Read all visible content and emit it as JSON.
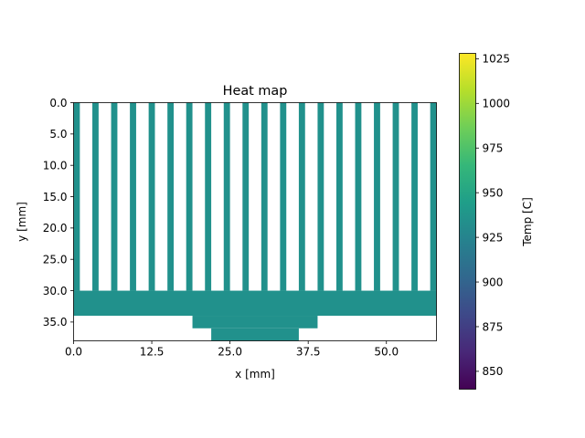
{
  "chart_data": {
    "type": "heatmap",
    "title": "Heat map",
    "xlabel": "x [mm]",
    "ylabel": "y [mm]",
    "xlim": [
      0,
      58
    ],
    "ylim": [
      38,
      0
    ],
    "x_ticks": [
      "0.0",
      "12.5",
      "25.0",
      "37.5",
      "50.0"
    ],
    "x_tick_values": [
      0,
      12.5,
      25,
      37.5,
      50
    ],
    "y_ticks": [
      "0.0",
      "5.0",
      "10.0",
      "15.0",
      "20.0",
      "25.0",
      "30.0",
      "35.0"
    ],
    "y_tick_values": [
      0,
      5,
      10,
      15,
      20,
      25,
      30,
      35
    ],
    "colorbar": {
      "label": "Temp [C]",
      "colormap": "viridis",
      "range": [
        840,
        1028
      ],
      "ticks": [
        "850",
        "875",
        "900",
        "925",
        "950",
        "975",
        "1000",
        "1025"
      ],
      "tick_values": [
        850,
        875,
        900,
        925,
        950,
        975,
        1000,
        1025
      ]
    },
    "fill_value": 935,
    "fill_color": "#21918c",
    "regions": [
      {
        "name": "fin",
        "x": [
          0,
          1
        ],
        "y": [
          0,
          30
        ]
      },
      {
        "name": "fin",
        "x": [
          3,
          4
        ],
        "y": [
          0,
          30
        ]
      },
      {
        "name": "fin",
        "x": [
          6,
          7
        ],
        "y": [
          0,
          30
        ]
      },
      {
        "name": "fin",
        "x": [
          9,
          10
        ],
        "y": [
          0,
          30
        ]
      },
      {
        "name": "fin",
        "x": [
          12,
          13
        ],
        "y": [
          0,
          30
        ]
      },
      {
        "name": "fin",
        "x": [
          15,
          16
        ],
        "y": [
          0,
          30
        ]
      },
      {
        "name": "fin",
        "x": [
          18,
          19
        ],
        "y": [
          0,
          30
        ]
      },
      {
        "name": "fin",
        "x": [
          21,
          22
        ],
        "y": [
          0,
          30
        ]
      },
      {
        "name": "fin",
        "x": [
          24,
          25
        ],
        "y": [
          0,
          30
        ]
      },
      {
        "name": "fin",
        "x": [
          27,
          28
        ],
        "y": [
          0,
          30
        ]
      },
      {
        "name": "fin",
        "x": [
          30,
          31
        ],
        "y": [
          0,
          30
        ]
      },
      {
        "name": "fin",
        "x": [
          33,
          34
        ],
        "y": [
          0,
          30
        ]
      },
      {
        "name": "fin",
        "x": [
          36,
          37
        ],
        "y": [
          0,
          30
        ]
      },
      {
        "name": "fin",
        "x": [
          39,
          40
        ],
        "y": [
          0,
          30
        ]
      },
      {
        "name": "fin",
        "x": [
          42,
          43
        ],
        "y": [
          0,
          30
        ]
      },
      {
        "name": "fin",
        "x": [
          45,
          46
        ],
        "y": [
          0,
          30
        ]
      },
      {
        "name": "fin",
        "x": [
          48,
          49
        ],
        "y": [
          0,
          30
        ]
      },
      {
        "name": "fin",
        "x": [
          51,
          52
        ],
        "y": [
          0,
          30
        ]
      },
      {
        "name": "fin",
        "x": [
          54,
          55
        ],
        "y": [
          0,
          30
        ]
      },
      {
        "name": "fin",
        "x": [
          57,
          58
        ],
        "y": [
          0,
          30
        ]
      },
      {
        "name": "base-plate",
        "x": [
          0,
          58
        ],
        "y": [
          30,
          34
        ]
      },
      {
        "name": "step-1",
        "x": [
          19,
          39
        ],
        "y": [
          34,
          36
        ]
      },
      {
        "name": "step-2",
        "x": [
          22,
          36
        ],
        "y": [
          36,
          38
        ]
      }
    ]
  }
}
